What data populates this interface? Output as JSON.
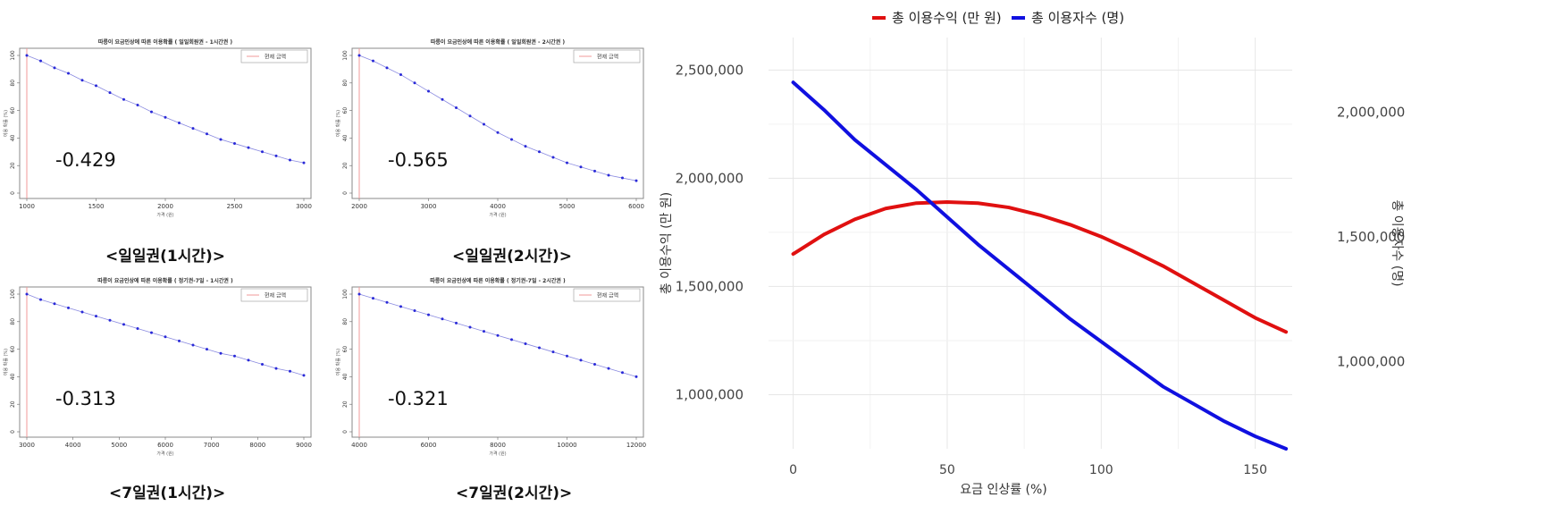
{
  "mini_legend_label": "현재 금액",
  "panels": [
    {
      "title": "따릉이 요금인상에 따른 이용확률 ( 일일회원권 - 1시간권 )",
      "xlabel": "가격 (원)",
      "ylabel": "이용 확률 (%)",
      "elasticity": "-0.429",
      "caption": "<일일권(1시간)>"
    },
    {
      "title": "따릉이 요금인상에 따른 이용확률 ( 일일회원권 - 2시간권 )",
      "xlabel": "가격 (원)",
      "ylabel": "이용 확률 (%)",
      "elasticity": "-0.565",
      "caption": "<일일권(2시간)>"
    },
    {
      "title": "따릉이 요금인상에 따른 이용확률 ( 정기권-7일 - 1시간권 )",
      "xlabel": "가격 (원)",
      "ylabel": "이용 확률 (%)",
      "elasticity": "-0.313",
      "caption": "<7일권(1시간)>"
    },
    {
      "title": "따릉이 요금인상에 따른 이용확률 ( 정기권-7일 - 2시간권 )",
      "xlabel": "가격 (원)",
      "ylabel": "이용 확률 (%)",
      "elasticity": "-0.321",
      "caption": "<7일권(2시간)>"
    }
  ],
  "chart_data": [
    {
      "type": "line",
      "xlim": [
        1000,
        3000
      ],
      "ylim": [
        0,
        100
      ],
      "current_price": 1000,
      "x_ticks": [
        1000,
        1500,
        2000,
        2500,
        3000
      ],
      "y_ticks": [
        0,
        20,
        40,
        60,
        80,
        100
      ],
      "series": [
        {
          "name": "이용확률",
          "color": "#2a2ad8",
          "x": [
            1000,
            1100,
            1200,
            1300,
            1400,
            1500,
            1600,
            1700,
            1800,
            1900,
            2000,
            2100,
            2200,
            2300,
            2400,
            2500,
            2600,
            2700,
            2800,
            2900,
            3000
          ],
          "y": [
            100,
            96,
            91,
            87,
            82,
            78,
            73,
            68,
            64,
            59,
            55,
            51,
            47,
            43,
            39,
            36,
            33,
            30,
            27,
            24,
            22
          ]
        }
      ]
    },
    {
      "type": "line",
      "xlim": [
        2000,
        6000
      ],
      "ylim": [
        0,
        100
      ],
      "current_price": 2000,
      "x_ticks": [
        2000,
        3000,
        4000,
        5000,
        6000
      ],
      "y_ticks": [
        0,
        20,
        40,
        60,
        80,
        100
      ],
      "series": [
        {
          "name": "이용확률",
          "color": "#2a2ad8",
          "x": [
            2000,
            2200,
            2400,
            2600,
            2800,
            3000,
            3200,
            3400,
            3600,
            3800,
            4000,
            4200,
            4400,
            4600,
            4800,
            5000,
            5200,
            5400,
            5600,
            5800,
            6000
          ],
          "y": [
            100,
            96,
            91,
            86,
            80,
            74,
            68,
            62,
            56,
            50,
            44,
            39,
            34,
            30,
            26,
            22,
            19,
            16,
            13,
            11,
            9
          ]
        }
      ]
    },
    {
      "type": "line",
      "xlim": [
        3000,
        9000
      ],
      "ylim": [
        0,
        100
      ],
      "current_price": 3000,
      "x_ticks": [
        3000,
        4000,
        5000,
        6000,
        7000,
        8000,
        9000
      ],
      "y_ticks": [
        0,
        20,
        40,
        60,
        80,
        100
      ],
      "series": [
        {
          "name": "이용확률",
          "color": "#2a2ad8",
          "x": [
            3000,
            3300,
            3600,
            3900,
            4200,
            4500,
            4800,
            5100,
            5400,
            5700,
            6000,
            6300,
            6600,
            6900,
            7200,
            7500,
            7800,
            8100,
            8400,
            8700,
            9000
          ],
          "y": [
            100,
            96,
            93,
            90,
            87,
            84,
            81,
            78,
            75,
            72,
            69,
            66,
            63,
            60,
            57,
            55,
            52,
            49,
            46,
            44,
            41
          ]
        }
      ]
    },
    {
      "type": "line",
      "xlim": [
        4000,
        12000
      ],
      "ylim": [
        0,
        100
      ],
      "current_price": 4000,
      "x_ticks": [
        4000,
        6000,
        8000,
        10000,
        12000
      ],
      "y_ticks": [
        0,
        20,
        40,
        60,
        80,
        100
      ],
      "series": [
        {
          "name": "이용확률",
          "color": "#2a2ad8",
          "x": [
            4000,
            4400,
            4800,
            5200,
            5600,
            6000,
            6400,
            6800,
            7200,
            7600,
            8000,
            8400,
            8800,
            9200,
            9600,
            10000,
            10400,
            10800,
            11200,
            11600,
            12000
          ],
          "y": [
            100,
            97,
            94,
            91,
            88,
            85,
            82,
            79,
            76,
            73,
            70,
            67,
            64,
            61,
            58,
            55,
            52,
            49,
            46,
            43,
            40
          ]
        }
      ]
    },
    {
      "type": "line",
      "legend_position": "top",
      "xlabel": "요금 인상률 (%)",
      "ylabel": "총 이용수익 (만 원)",
      "y2label": "총 이용자수 (명)",
      "xlim": [
        -8,
        162
      ],
      "ylim": [
        750000,
        2650000
      ],
      "y2lim": [
        650000,
        2300000
      ],
      "x_ticks": [
        0,
        50,
        100,
        150
      ],
      "y_ticks": [
        1000000,
        1500000,
        2000000,
        2500000
      ],
      "y_tick_labels": [
        "1,000,000",
        "1,500,000",
        "2,000,000",
        "2,500,000"
      ],
      "y2_ticks": [
        1000000,
        1500000,
        2000000
      ],
      "y2_tick_labels": [
        "1,000,000",
        "1,500,000",
        "2,000,000"
      ],
      "grid": true,
      "series": [
        {
          "name": "총 이용수익 (만 원)",
          "color": "#e01010",
          "axis": "left",
          "x": [
            0,
            10,
            20,
            30,
            40,
            50,
            60,
            70,
            80,
            90,
            100,
            110,
            120,
            130,
            140,
            150,
            160
          ],
          "y": [
            1650000,
            1740000,
            1810000,
            1860000,
            1885000,
            1890000,
            1885000,
            1865000,
            1830000,
            1785000,
            1730000,
            1665000,
            1595000,
            1515000,
            1435000,
            1355000,
            1290000
          ]
        },
        {
          "name": "총 이용자수 (명)",
          "color": "#1010e0",
          "axis": "right",
          "x": [
            0,
            10,
            20,
            30,
            40,
            50,
            60,
            70,
            80,
            90,
            100,
            110,
            120,
            130,
            140,
            150,
            160
          ],
          "y": [
            2120000,
            2010000,
            1890000,
            1790000,
            1690000,
            1580000,
            1470000,
            1370000,
            1270000,
            1170000,
            1080000,
            990000,
            900000,
            830000,
            760000,
            700000,
            650000
          ]
        }
      ]
    }
  ]
}
